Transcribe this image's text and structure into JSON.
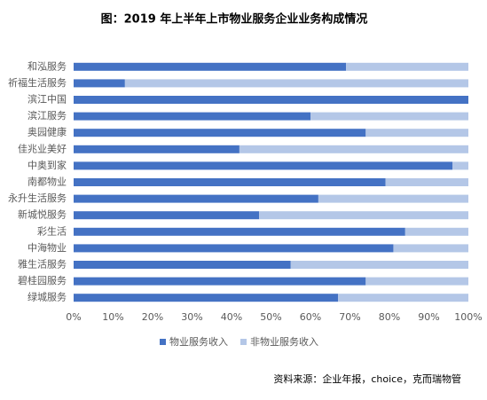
{
  "chart_data": {
    "type": "stacked-barh",
    "title": "图：2019 年上半年上市物业服务企业业务构成情况",
    "source": "资料来源：企业年报，choice，克而瑞物管",
    "categories": [
      "和泓服务",
      "祈福生活服务",
      "滨江中国",
      "滨江服务",
      "奥园健康",
      "佳兆业美好",
      "中奥到家",
      "南都物业",
      "永升生活服务",
      "新城悦服务",
      "彩生活",
      "中海物业",
      "雅生活服务",
      "碧桂园服务",
      "绿城服务"
    ],
    "series": [
      {
        "name": "物业服务收入",
        "color": "#4472c4",
        "values": [
          69,
          13,
          100,
          60,
          74,
          42,
          96,
          79,
          62,
          47,
          84,
          81,
          55,
          74,
          67
        ]
      },
      {
        "name": "非物业服务收入",
        "color": "#b4c7e7",
        "values": [
          31,
          87,
          0,
          40,
          26,
          58,
          4,
          21,
          38,
          53,
          16,
          19,
          45,
          26,
          33
        ]
      }
    ],
    "xlim": [
      0,
      100
    ],
    "xticks": [
      {
        "value": 0,
        "label": "0%"
      },
      {
        "value": 10,
        "label": "10%"
      },
      {
        "value": 20,
        "label": "20%"
      },
      {
        "value": 30,
        "label": "30%"
      },
      {
        "value": 40,
        "label": "40%"
      },
      {
        "value": 50,
        "label": "50%"
      },
      {
        "value": 60,
        "label": "60%"
      },
      {
        "value": 70,
        "label": "70%"
      },
      {
        "value": 80,
        "label": "80%"
      },
      {
        "value": 90,
        "label": "90%"
      },
      {
        "value": 100,
        "label": "100%"
      }
    ],
    "grid": false,
    "legend": "bottom"
  }
}
